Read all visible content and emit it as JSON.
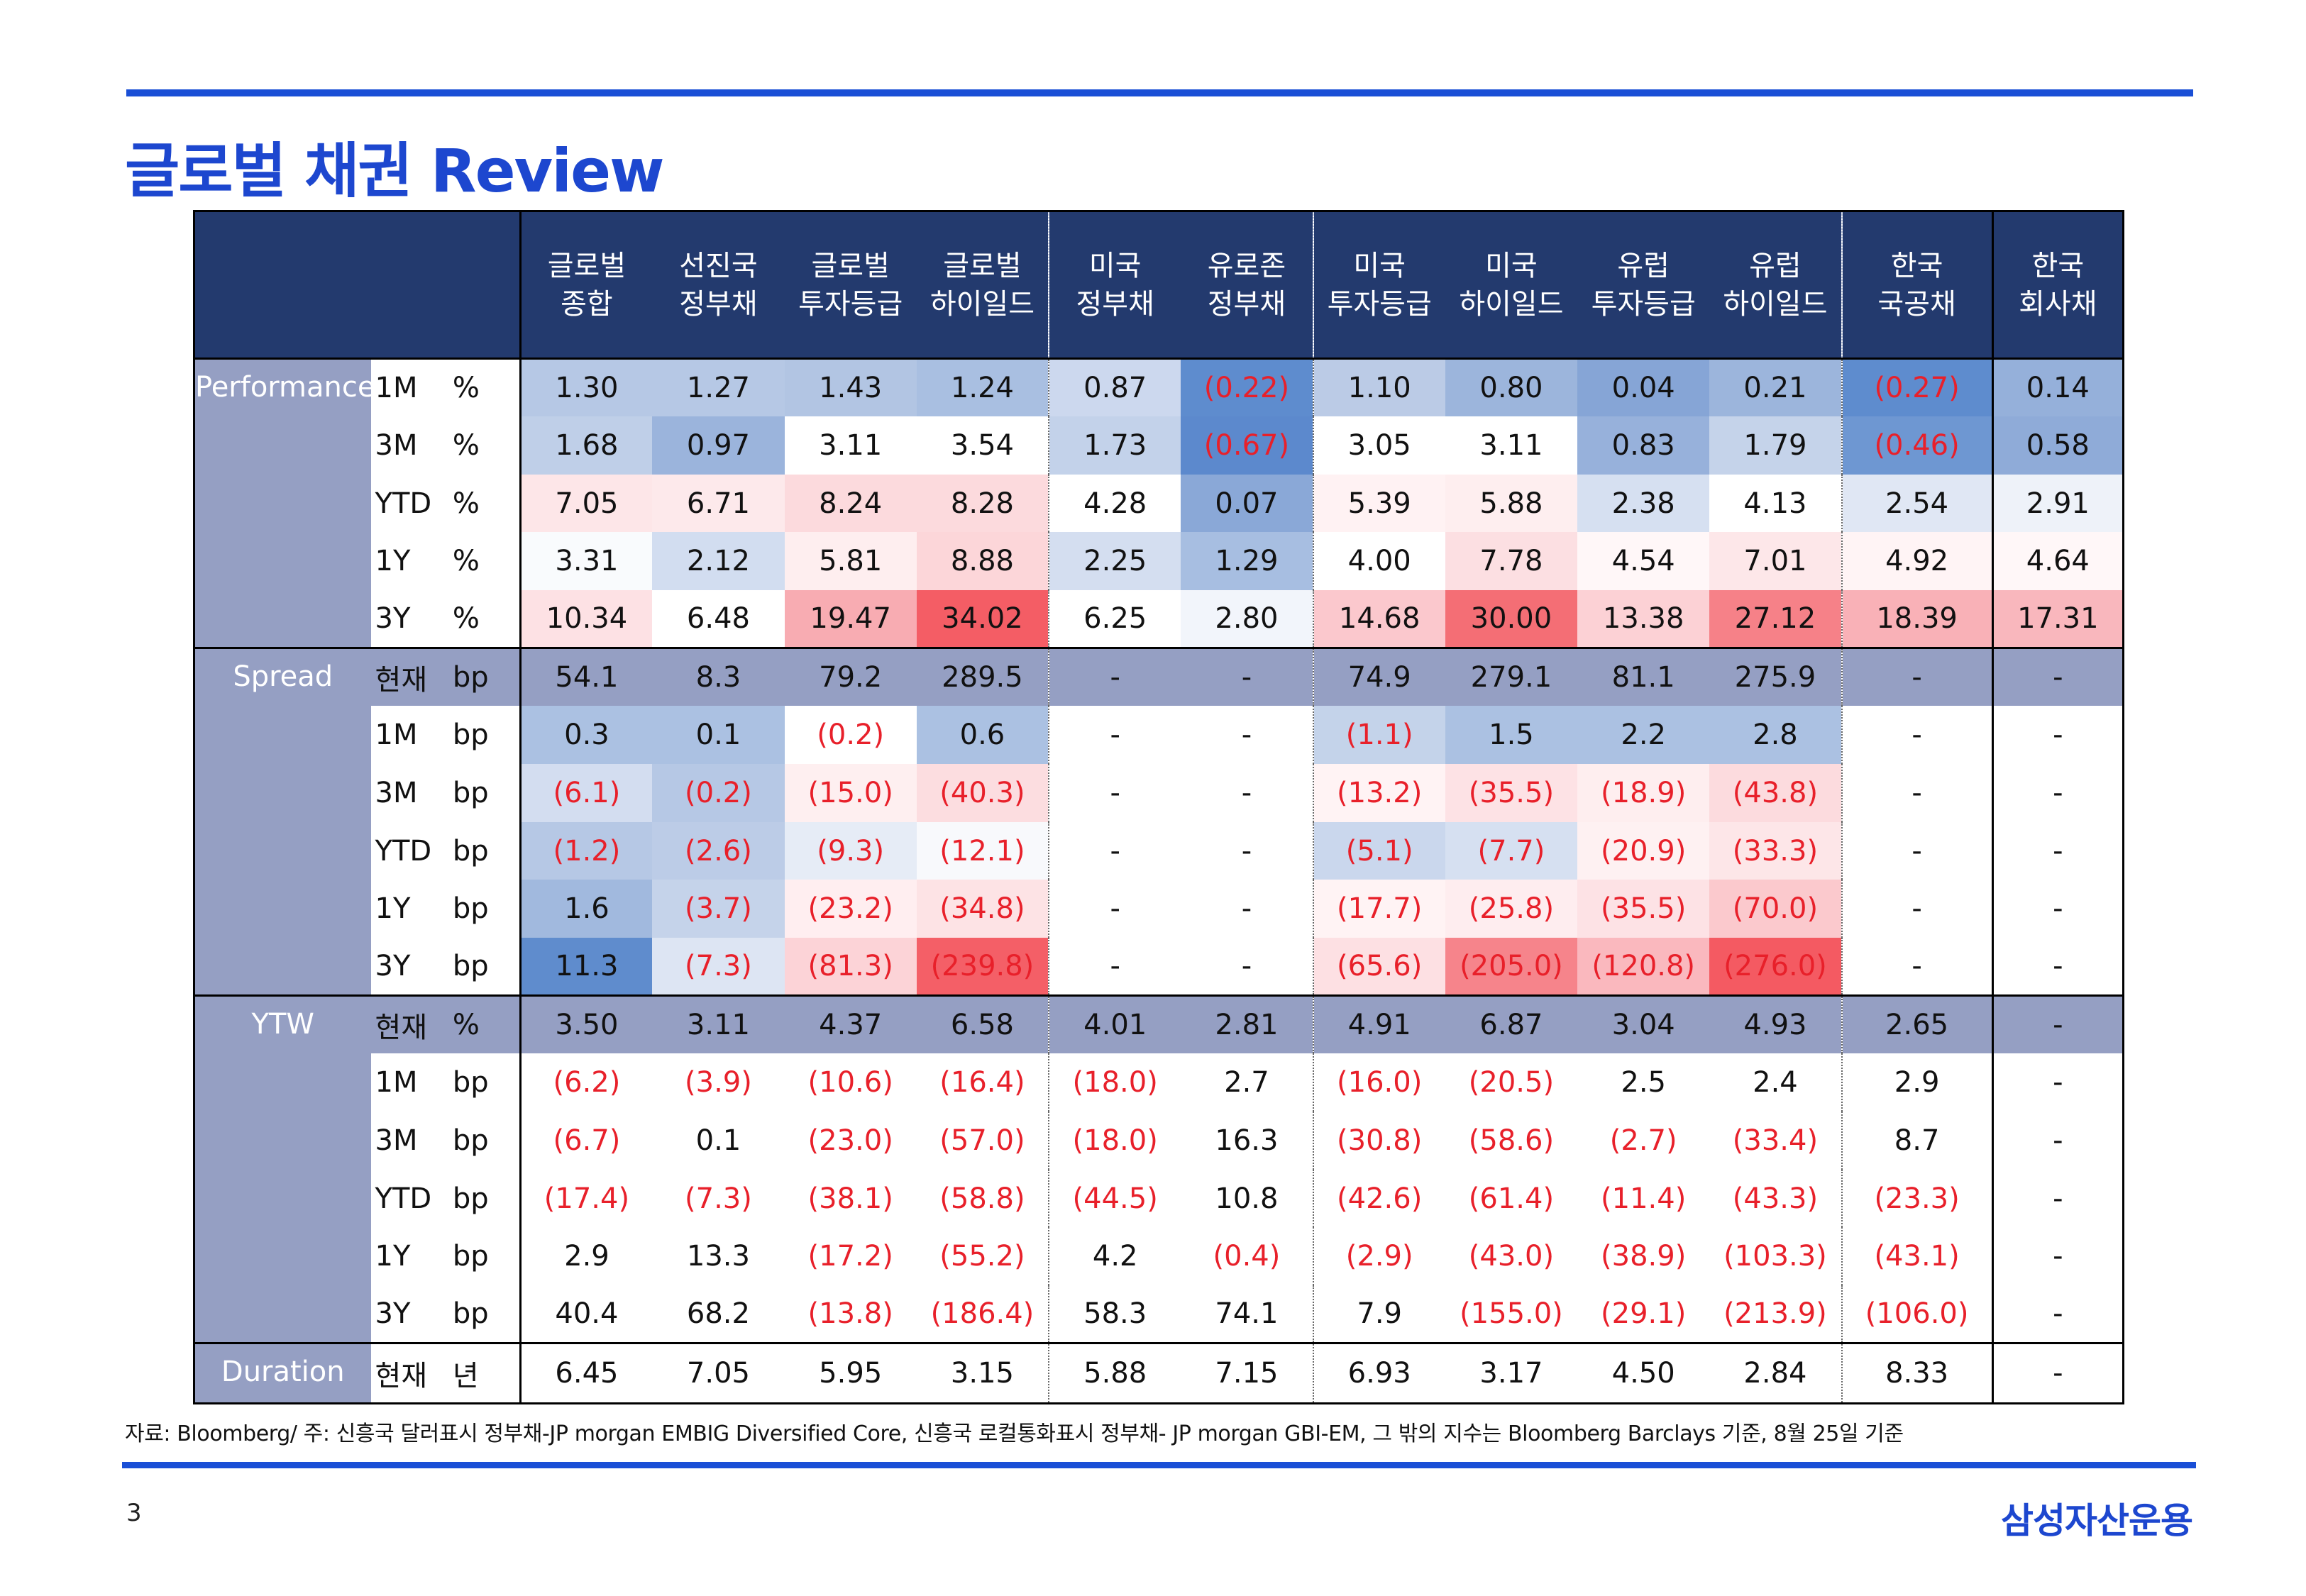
{
  "title": "글로벌 채권 Review",
  "columns": [
    {
      "line1": "글로벌",
      "line2": "종합"
    },
    {
      "line1": "선진국",
      "line2": "정부채"
    },
    {
      "line1": "글로벌",
      "line2": "투자등급"
    },
    {
      "line1": "글로벌",
      "line2": "하이일드"
    },
    {
      "line1": "미국",
      "line2": "정부채"
    },
    {
      "line1": "유로존",
      "line2": "정부채"
    },
    {
      "line1": "미국",
      "line2": "투자등급"
    },
    {
      "line1": "미국",
      "line2": "하이일드"
    },
    {
      "line1": "유럽",
      "line2": "투자등급"
    },
    {
      "line1": "유럽",
      "line2": "하이일드"
    },
    {
      "line1": "한국",
      "line2": "국공채"
    },
    {
      "line1": "한국",
      "line2": "회사채"
    }
  ],
  "sections": [
    {
      "label": "Performance",
      "rows": [
        {
          "period": "1M",
          "unit": "%",
          "band": false,
          "values": [
            "1.30",
            "1.27",
            "1.43",
            "1.24",
            "0.87",
            "(0.22)",
            "1.10",
            "0.80",
            "0.04",
            "0.21",
            "(0.27)",
            "0.14"
          ],
          "colors": [
            "#b6c8e5",
            "#b6c8e5",
            "#b2c5e3",
            "#a9bfe1",
            "#ccd8ee",
            "#5e8cce",
            "#bbcbe6",
            "#9cb5dc",
            "#86a5d6",
            "#9cb5dc",
            "#5e8cce",
            "#95b0da"
          ]
        },
        {
          "period": "3M",
          "unit": "%",
          "band": false,
          "values": [
            "1.68",
            "0.97",
            "3.11",
            "3.54",
            "1.73",
            "(0.67)",
            "3.05",
            "3.11",
            "0.83",
            "1.79",
            "(0.46)",
            "0.58"
          ],
          "colors": [
            "#bfcfe8",
            "#9bb4dc",
            "#ffffff",
            "#ffffff",
            "#c3d2ea",
            "#5c89cd",
            "#ffffff",
            "#ffffff",
            "#97b1db",
            "#c5d3ea",
            "#6e97d2",
            "#8fabd8"
          ]
        },
        {
          "period": "YTD",
          "unit": "%",
          "band": false,
          "values": [
            "7.05",
            "6.71",
            "8.24",
            "8.28",
            "4.28",
            "0.07",
            "5.39",
            "5.88",
            "2.38",
            "4.13",
            "2.54",
            "2.91"
          ],
          "colors": [
            "#fde6e8",
            "#fde9eb",
            "#fcdadd",
            "#fcdadd",
            "#ffffff",
            "#8aa8d7",
            "#fff2f3",
            "#feeeef",
            "#d6e0f1",
            "#ffffff",
            "#e0e7f4",
            "#eef2f9"
          ]
        },
        {
          "period": "1Y",
          "unit": "%",
          "band": false,
          "values": [
            "3.31",
            "2.12",
            "5.81",
            "8.88",
            "2.25",
            "1.29",
            "4.00",
            "7.78",
            "4.54",
            "7.01",
            "4.92",
            "4.64"
          ],
          "colors": [
            "#f9fbfd",
            "#d2ddf0",
            "#feeeef",
            "#fcd6d9",
            "#d4def0",
            "#a7bee1",
            "#ffffff",
            "#fcdfe2",
            "#fff7f8",
            "#fde7e9",
            "#fff4f5",
            "#fff7f8"
          ]
        },
        {
          "period": "3Y",
          "unit": "%",
          "band": false,
          "values": [
            "10.34",
            "6.48",
            "19.47",
            "34.02",
            "6.25",
            "2.80",
            "14.68",
            "30.00",
            "13.38",
            "27.12",
            "18.39",
            "17.31"
          ],
          "colors": [
            "#fde1e4",
            "#ffffff",
            "#f8acb2",
            "#f45d65",
            "#ffffff",
            "#f2f5fb",
            "#fbc8cd",
            "#f46e75",
            "#fcd1d5",
            "#f68188",
            "#f9b1b7",
            "#f9b7bd"
          ]
        }
      ]
    },
    {
      "label": "Spread",
      "rows": [
        {
          "period": "현재",
          "unit": "bp",
          "band": true,
          "values": [
            "54.1",
            "8.3",
            "79.2",
            "289.5",
            "-",
            "-",
            "74.9",
            "279.1",
            "81.1",
            "275.9",
            "-",
            "-"
          ],
          "colors": []
        },
        {
          "period": "1M",
          "unit": "bp",
          "band": false,
          "values": [
            "0.3",
            "0.1",
            "(0.2)",
            "0.6",
            "-",
            "-",
            "(1.1)",
            "1.5",
            "2.2",
            "2.8",
            "-",
            "-"
          ],
          "colors": [
            "#abc1e2",
            "#abc1e2",
            "#ffffff",
            "#abc1e2",
            "#ffffff",
            "#ffffff",
            "#c4d3ea",
            "#abc1e2",
            "#abc1e2",
            "#abc1e2",
            "#ffffff",
            "#ffffff"
          ]
        },
        {
          "period": "3M",
          "unit": "bp",
          "band": false,
          "values": [
            "(6.1)",
            "(0.2)",
            "(15.0)",
            "(40.3)",
            "-",
            "-",
            "(13.2)",
            "(35.5)",
            "(18.9)",
            "(43.8)",
            "-",
            "-"
          ],
          "colors": [
            "#d3ddf0",
            "#b6c8e5",
            "#feeff0",
            "#fcdde0",
            "#ffffff",
            "#ffffff",
            "#fff3f4",
            "#fde2e5",
            "#feeeef",
            "#fcdbde",
            "#ffffff",
            "#ffffff"
          ]
        },
        {
          "period": "YTD",
          "unit": "bp",
          "band": false,
          "values": [
            "(1.2)",
            "(2.6)",
            "(9.3)",
            "(12.1)",
            "-",
            "-",
            "(5.1)",
            "(7.7)",
            "(20.9)",
            "(33.3)",
            "-",
            "-"
          ],
          "colors": [
            "#b6c8e5",
            "#bccce7",
            "#e6ecf6",
            "#f8f9fc",
            "#ffffff",
            "#ffffff",
            "#cad7ed",
            "#d6e0f1",
            "#fef1f2",
            "#fde6e8",
            "#ffffff",
            "#ffffff"
          ]
        },
        {
          "period": "1Y",
          "unit": "bp",
          "band": false,
          "values": [
            "1.6",
            "(3.7)",
            "(23.2)",
            "(34.8)",
            "-",
            "-",
            "(17.7)",
            "(25.8)",
            "(35.5)",
            "(70.0)",
            "-",
            "-"
          ],
          "colors": [
            "#a1b9de",
            "#c5d3ea",
            "#ffeef0",
            "#fde3e5",
            "#ffffff",
            "#ffffff",
            "#fff3f4",
            "#feedef",
            "#fde2e5",
            "#fbc9cd",
            "#ffffff",
            "#ffffff"
          ]
        },
        {
          "period": "3Y",
          "unit": "bp",
          "band": false,
          "values": [
            "11.3",
            "(7.3)",
            "(81.3)",
            "(239.8)",
            "-",
            "-",
            "(65.6)",
            "(205.0)",
            "(120.8)",
            "(276.0)",
            "-",
            "-"
          ],
          "colors": [
            "#5f8ccd",
            "#dde5f3",
            "#fcd3d7",
            "#f45f67",
            "#ffffff",
            "#ffffff",
            "#fde0e3",
            "#f6848b",
            "#fab8be",
            "#f45a62",
            "#ffffff",
            "#ffffff"
          ]
        }
      ]
    },
    {
      "label": "YTW",
      "rows": [
        {
          "period": "현재",
          "unit": "%",
          "band": true,
          "values": [
            "3.50",
            "3.11",
            "4.37",
            "6.58",
            "4.01",
            "2.81",
            "4.91",
            "6.87",
            "3.04",
            "4.93",
            "2.65",
            "-"
          ],
          "colors": []
        },
        {
          "period": "1M",
          "unit": "bp",
          "band": false,
          "values": [
            "(6.2)",
            "(3.9)",
            "(10.6)",
            "(16.4)",
            "(18.0)",
            "2.7",
            "(16.0)",
            "(20.5)",
            "2.5",
            "2.4",
            "2.9",
            "-"
          ],
          "colors": []
        },
        {
          "period": "3M",
          "unit": "bp",
          "band": false,
          "values": [
            "(6.7)",
            "0.1",
            "(23.0)",
            "(57.0)",
            "(18.0)",
            "16.3",
            "(30.8)",
            "(58.6)",
            "(2.7)",
            "(33.4)",
            "8.7",
            "-"
          ],
          "colors": []
        },
        {
          "period": "YTD",
          "unit": "bp",
          "band": false,
          "values": [
            "(17.4)",
            "(7.3)",
            "(38.1)",
            "(58.8)",
            "(44.5)",
            "10.8",
            "(42.6)",
            "(61.4)",
            "(11.4)",
            "(43.3)",
            "(23.3)",
            "-"
          ],
          "colors": []
        },
        {
          "period": "1Y",
          "unit": "bp",
          "band": false,
          "values": [
            "2.9",
            "13.3",
            "(17.2)",
            "(55.2)",
            "4.2",
            "(0.4)",
            "(2.9)",
            "(43.0)",
            "(38.9)",
            "(103.3)",
            "(43.1)",
            "-"
          ],
          "colors": []
        },
        {
          "period": "3Y",
          "unit": "bp",
          "band": false,
          "values": [
            "40.4",
            "68.2",
            "(13.8)",
            "(186.4)",
            "58.3",
            "74.1",
            "7.9",
            "(155.0)",
            "(29.1)",
            "(213.9)",
            "(106.0)",
            "-"
          ],
          "colors": []
        }
      ]
    },
    {
      "label": "Duration",
      "rows": [
        {
          "period": "현재",
          "unit": "년",
          "band": false,
          "values": [
            "6.45",
            "7.05",
            "5.95",
            "3.15",
            "5.88",
            "7.15",
            "6.93",
            "3.17",
            "4.50",
            "2.84",
            "8.33",
            "-"
          ],
          "colors": []
        }
      ]
    }
  ],
  "footnote": "자료: Bloomberg/ 주: 신흥국 달러표시 정부채-JP morgan EMBIG Diversified Core, 신흥국 로컬통화표시 정부채- JP morgan GBI-EM, 그 밖의 지수는 Bloomberg Barclays 기준, 8월 25일 기준",
  "page_number": "3",
  "brand": "삼성자산운용"
}
